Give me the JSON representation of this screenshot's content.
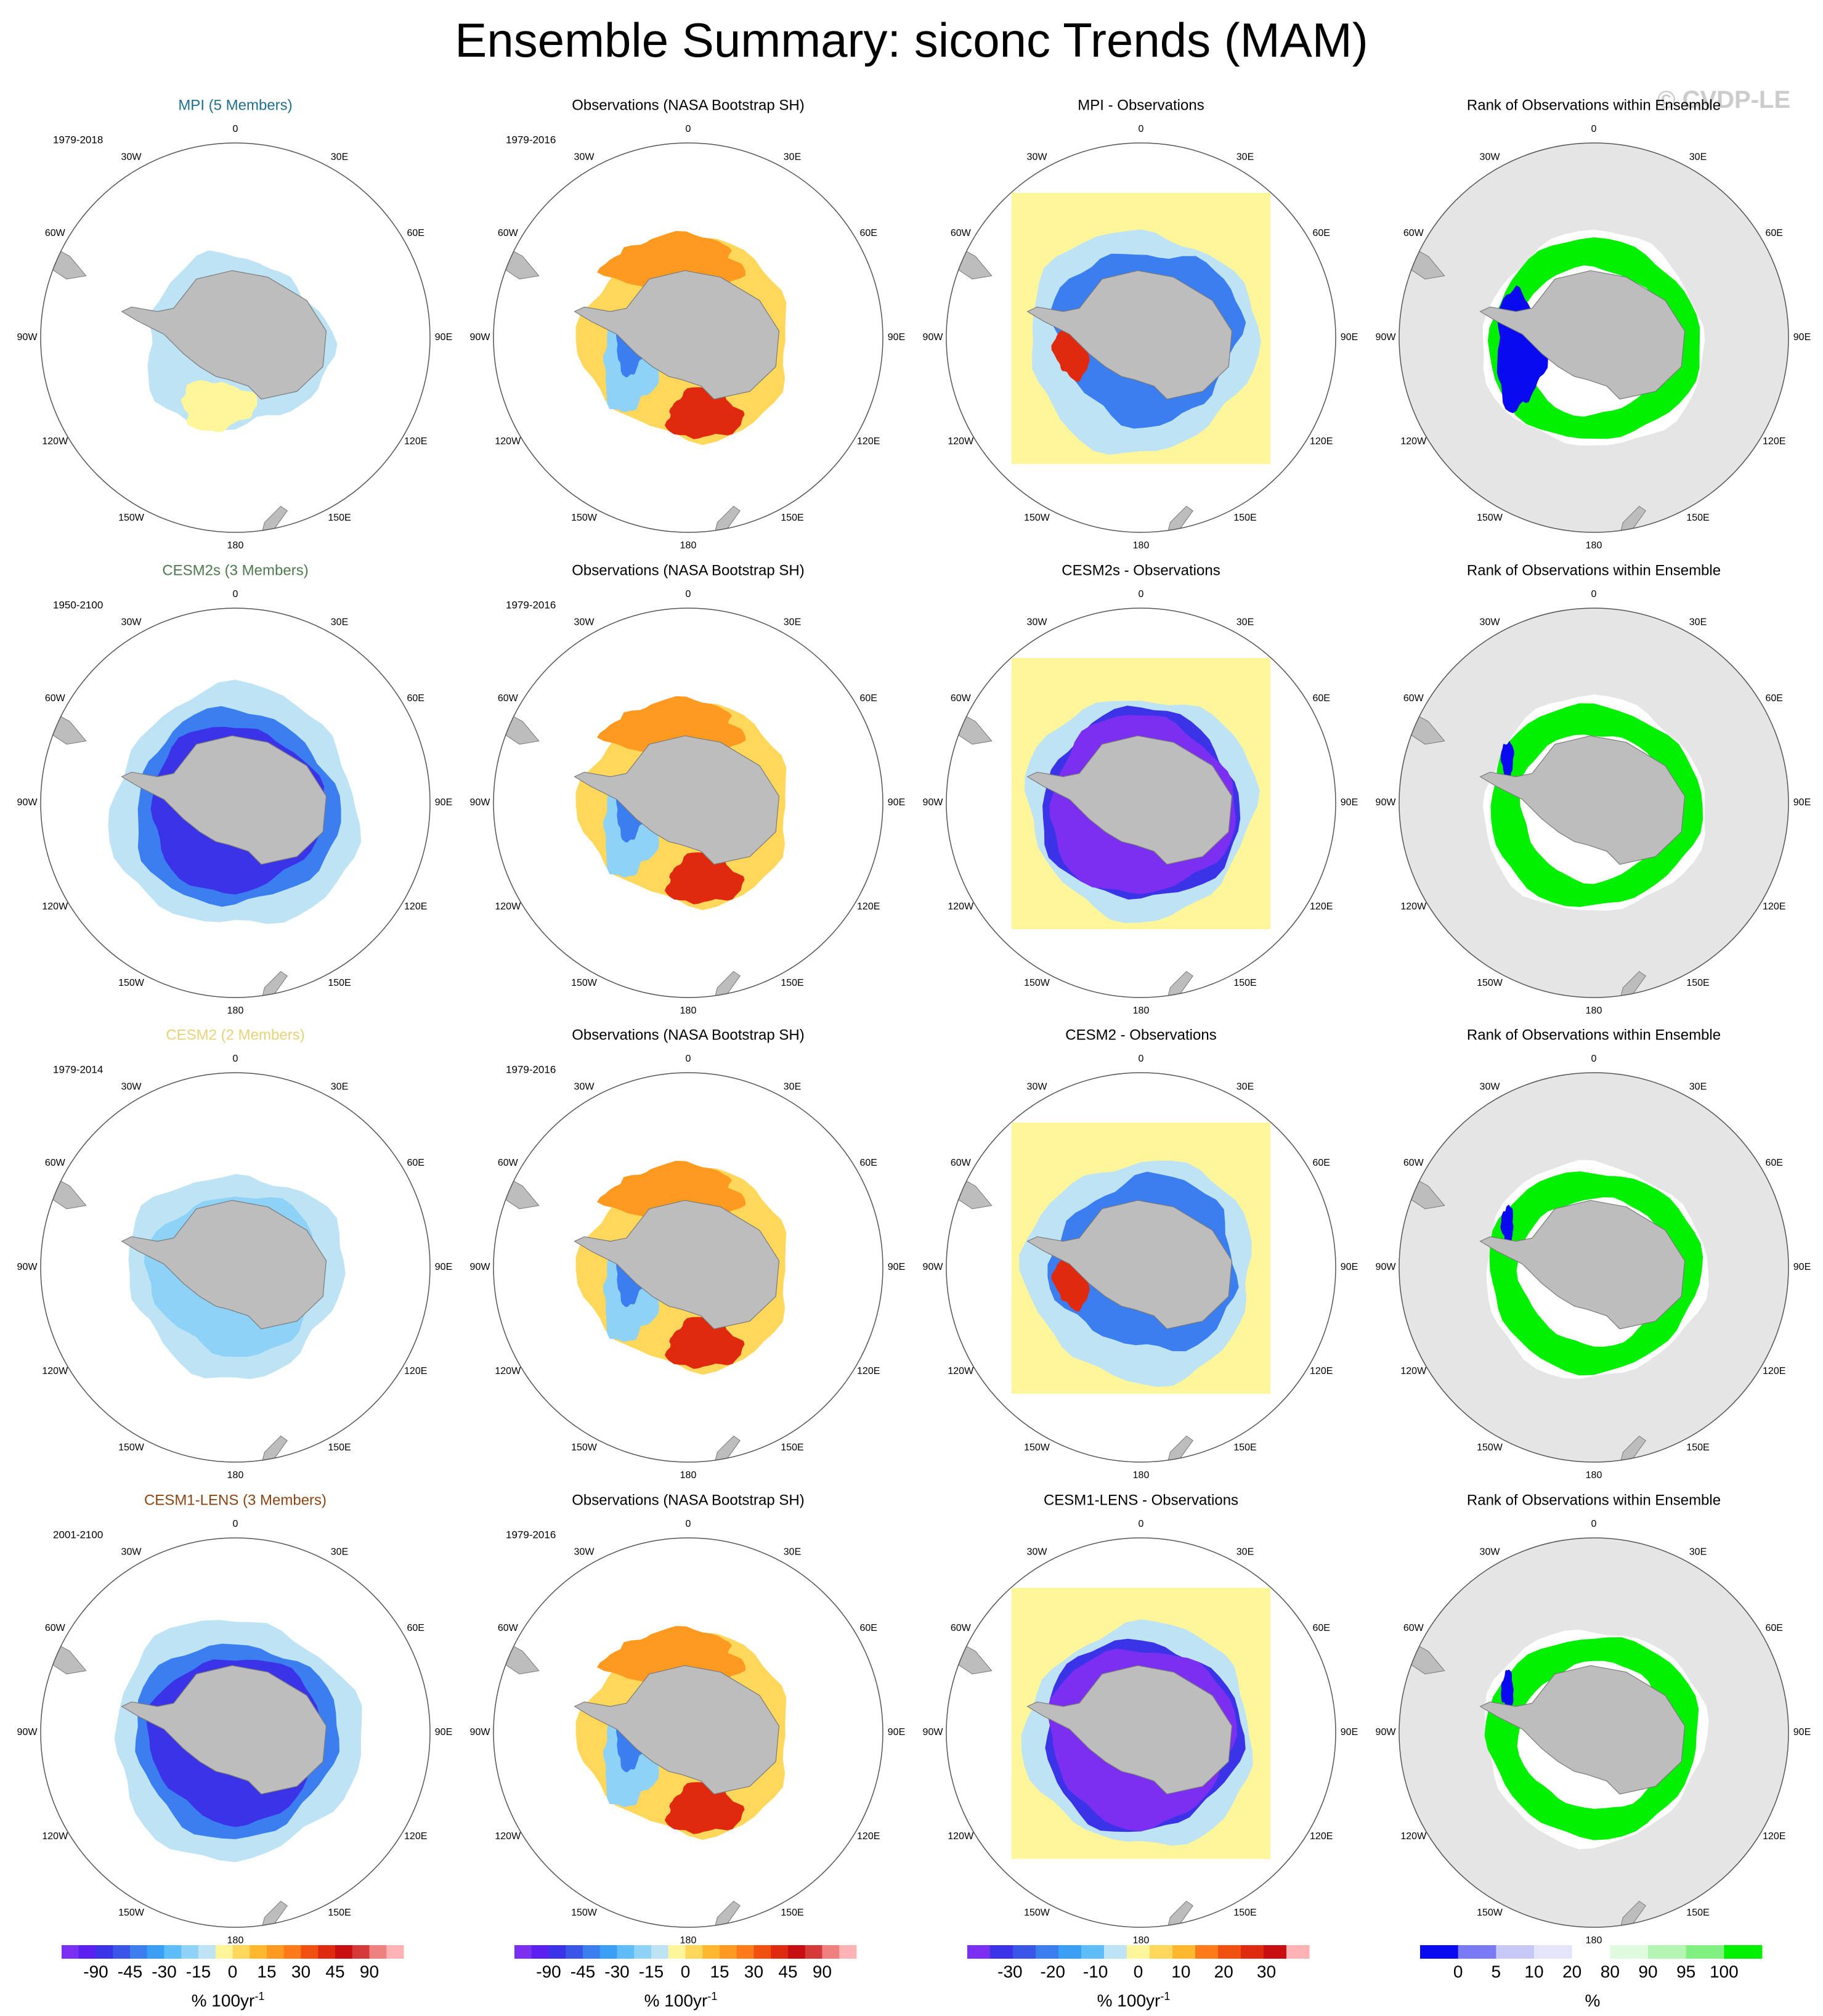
{
  "title": "Ensemble Summary: siconc Trends (MAM)",
  "watermark": "© CVDP-LE",
  "lon_labels": [
    "0",
    "30E",
    "60E",
    "90E",
    "120E",
    "150E",
    "180",
    "150W",
    "120W",
    "90W",
    "60W",
    "30W"
  ],
  "rows": [
    {
      "model_title": "MPI (5 Members)",
      "model_color": "#1f6f8b",
      "model_years": "1979-2018",
      "obs_title": "Observations (NASA Bootstrap SH)",
      "obs_years": "1979-2016",
      "diff_title": "MPI - Observations",
      "rank_title": "Rank of Observations within Ensemble"
    },
    {
      "model_title": "CESM2s (3 Members)",
      "model_color": "#4e7a4e",
      "model_years": "1950-2100",
      "obs_title": "Observations (NASA Bootstrap SH)",
      "obs_years": "1979-2016",
      "diff_title": "CESM2s - Observations",
      "rank_title": "Rank of Observations within Ensemble"
    },
    {
      "model_title": "CESM2 (2 Members)",
      "model_color": "#e8d27a",
      "model_years": "1979-2014",
      "obs_title": "Observations (NASA Bootstrap SH)",
      "obs_years": "1979-2016",
      "diff_title": "CESM2 - Observations",
      "rank_title": "Rank of Observations within Ensemble"
    },
    {
      "model_title": "CESM1-LENS (3 Members)",
      "model_color": "#8b4513",
      "model_years": "2001-2100",
      "obs_title": "Observations (NASA Bootstrap SH)",
      "obs_years": "1979-2016",
      "diff_title": "CESM1-LENS - Observations",
      "rank_title": "Rank of Observations within Ensemble"
    }
  ],
  "colorbars": [
    {
      "colors": [
        "#7b2ff0",
        "#5a20f0",
        "#3a33e8",
        "#3b55e8",
        "#3b7ef0",
        "#3aa0f5",
        "#5cbdf7",
        "#8fd2f7",
        "#bde3f5",
        "#fff59a",
        "#ffd75a",
        "#ffb830",
        "#ff9a20",
        "#ff7a18",
        "#f05010",
        "#e02a10",
        "#c80e10",
        "#d43a3a",
        "#f08080",
        "#ffb3b3"
      ],
      "ticks": [
        "-90",
        "-45",
        "-30",
        "-15",
        "0",
        "15",
        "30",
        "45",
        "90"
      ],
      "unit": "% 100yr",
      "unit_exp": "-1"
    },
    {
      "colors": [
        "#7b2ff0",
        "#5a20f0",
        "#3a33e8",
        "#3b55e8",
        "#3b7ef0",
        "#3aa0f5",
        "#5cbdf7",
        "#8fd2f7",
        "#bde3f5",
        "#fff59a",
        "#ffd75a",
        "#ffb830",
        "#ff9a20",
        "#ff7a18",
        "#f05010",
        "#e02a10",
        "#c80e10",
        "#d43a3a",
        "#f08080",
        "#ffb3b3"
      ],
      "ticks": [
        "-90",
        "-45",
        "-30",
        "-15",
        "0",
        "15",
        "30",
        "45",
        "90"
      ],
      "unit": "% 100yr",
      "unit_exp": "-1"
    },
    {
      "colors": [
        "#7b2ff0",
        "#3a33e8",
        "#3b55e8",
        "#3b7ef0",
        "#3aa0f5",
        "#5cbdf7",
        "#bde3f5",
        "#fff59a",
        "#ffd75a",
        "#ffb830",
        "#ff7a18",
        "#f05010",
        "#e02a10",
        "#c80e10",
        "#ffb3b3"
      ],
      "ticks": [
        "-30",
        "-20",
        "-10",
        "0",
        "10",
        "20",
        "30"
      ],
      "unit": "% 100yr",
      "unit_exp": "-1"
    },
    {
      "colors": [
        "#0a0af0",
        "#7a7af5",
        "#c8c8f5",
        "#e4e4fa",
        "#ffffff",
        "#e0fae0",
        "#b4f5b4",
        "#80f080",
        "#00f000"
      ],
      "ticks": [
        "0",
        "5",
        "10",
        "20",
        "80",
        "90",
        "95",
        "100"
      ],
      "unit": "%",
      "unit_exp": ""
    }
  ]
}
